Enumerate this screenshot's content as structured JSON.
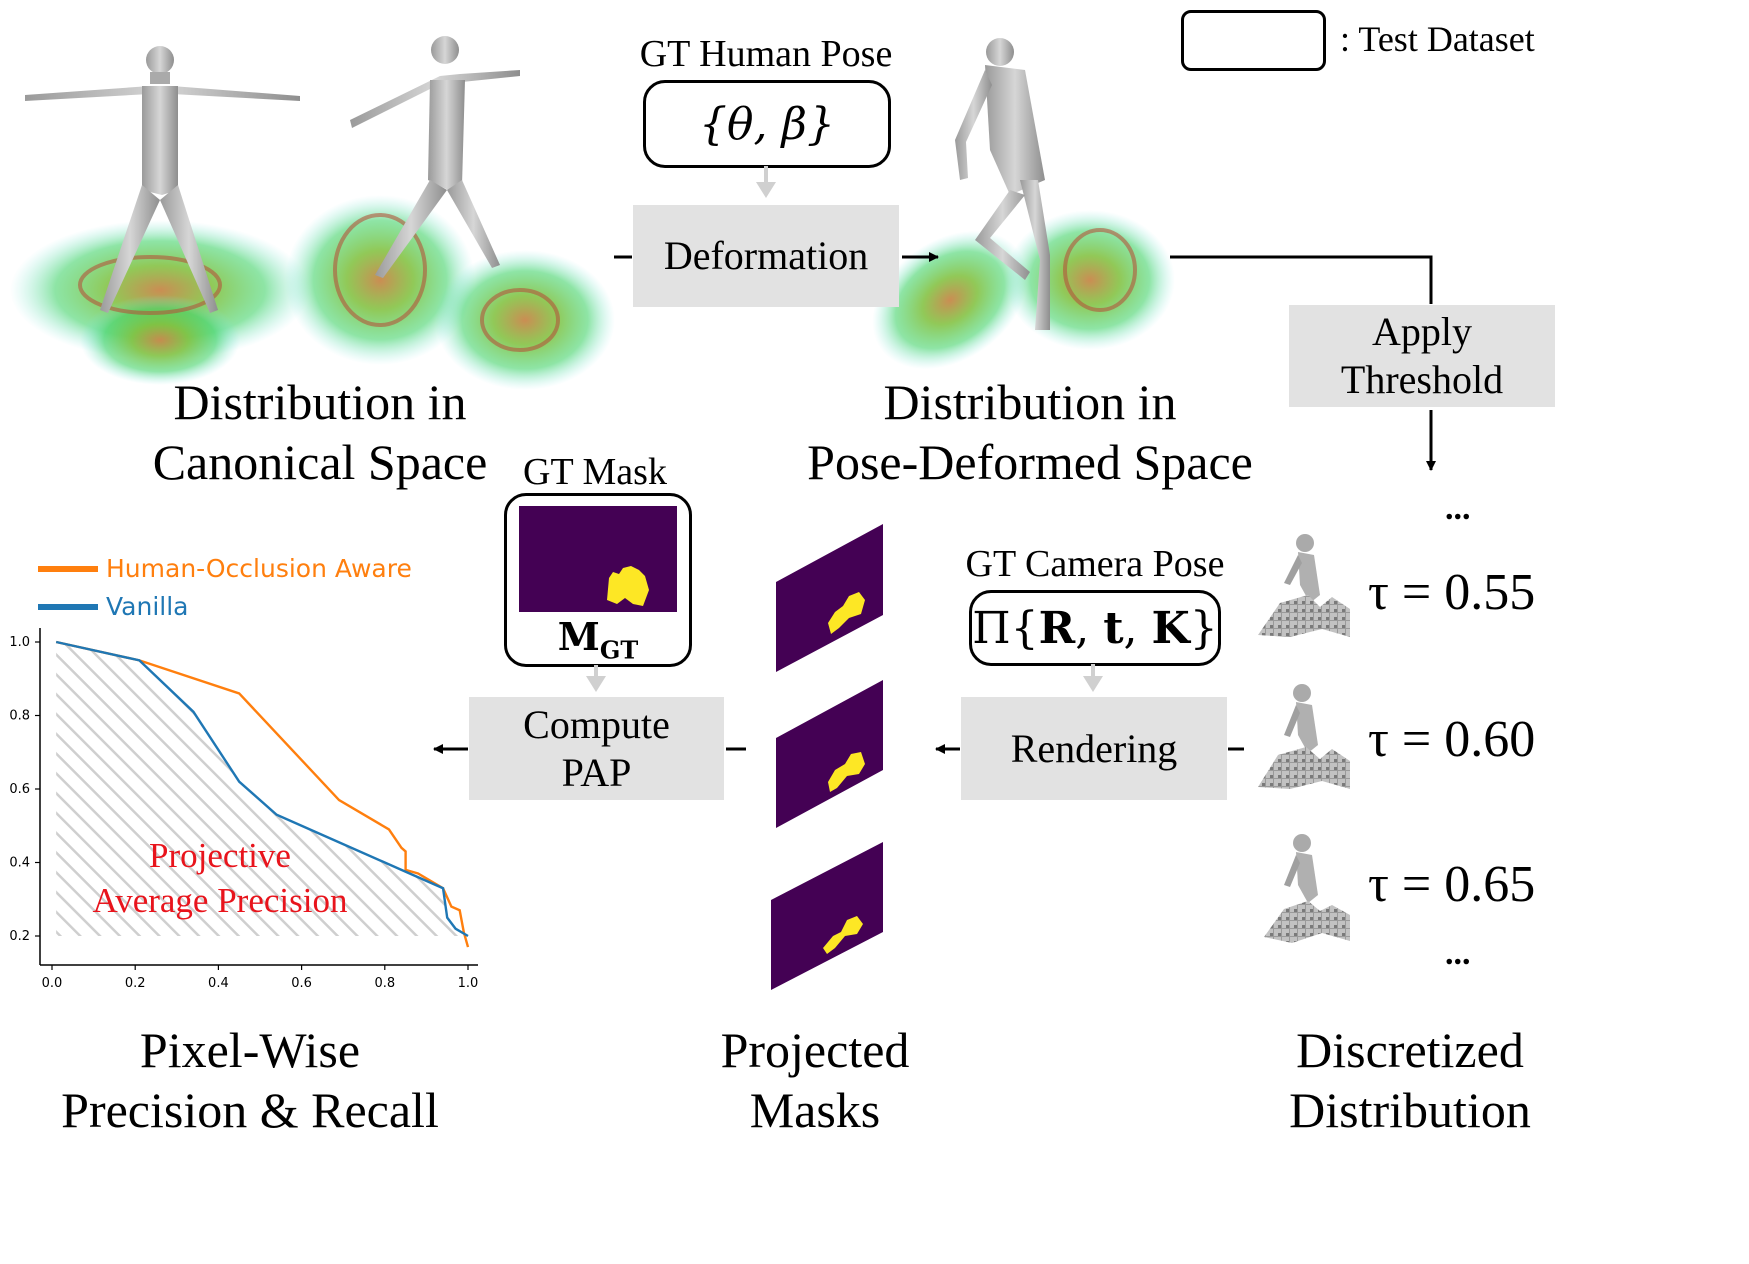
{
  "legend_box": {
    "label": ": Test Dataset"
  },
  "top": {
    "gt_pose_title": "GT Human Pose",
    "gt_pose_math": "{θ, β}",
    "deformation": "Deformation",
    "canonical_caption": [
      "Distribution in",
      "Canonical Space"
    ],
    "deformed_caption": [
      "Distribution in",
      "Pose-Deformed Space"
    ],
    "threshold_label": [
      "Apply",
      "Threshold"
    ]
  },
  "middle": {
    "gt_mask_title": "GT Mask",
    "gt_mask_symbol": "M",
    "gt_mask_subscript": "GT",
    "camera_title": "GT Camera Pose",
    "camera_math": {
      "prefix": "Π{",
      "R": "R",
      "t": "t",
      "K": "K",
      "suffix": "}"
    },
    "rendering": "Rendering",
    "compute_pap": [
      "Compute",
      "PAP"
    ]
  },
  "thresholds": {
    "values": [
      "τ = 0.55",
      "τ = 0.60",
      "τ = 0.65"
    ],
    "ellipsis": "..."
  },
  "bottom_captions": {
    "pr": [
      "Pixel-Wise",
      "Precision & Recall"
    ],
    "masks": [
      "Projected",
      "Masks"
    ],
    "discretized": [
      "Discretized",
      "Distribution"
    ]
  },
  "colors": {
    "mask_bg": "#440154",
    "mask_fg": "#fde725",
    "orange": "#ff7f0e",
    "blue": "#1f77b4",
    "box_gray": "#e2e2e2",
    "pap_red": "#e8141c"
  },
  "chart_data": {
    "type": "line",
    "title": "",
    "xlabel": "",
    "ylabel": "",
    "xlim": [
      0.0,
      1.0
    ],
    "ylim": [
      0.2,
      1.0
    ],
    "x_ticks": [
      "0.0",
      "0.2",
      "0.4",
      "0.6",
      "0.8",
      "1.0"
    ],
    "y_ticks": [
      "0.2",
      "0.4",
      "0.6",
      "0.8",
      "1.0"
    ],
    "legend": "top-left",
    "area_label": [
      "Projective",
      "Average Precision"
    ],
    "series": [
      {
        "name": "Human-Occlusion Aware",
        "color": "#ff7f0e",
        "x": [
          0.01,
          0.21,
          0.45,
          0.69,
          0.81,
          0.84,
          0.85,
          0.85,
          0.88,
          0.94,
          0.96,
          0.98,
          0.99,
          1.0
        ],
        "y": [
          1.0,
          0.95,
          0.86,
          0.57,
          0.49,
          0.44,
          0.43,
          0.38,
          0.37,
          0.33,
          0.28,
          0.27,
          0.21,
          0.17
        ]
      },
      {
        "name": "Vanilla",
        "color": "#1f77b4",
        "x": [
          0.01,
          0.21,
          0.34,
          0.45,
          0.54,
          0.64,
          0.84,
          0.94,
          0.95,
          0.97,
          1.0
        ],
        "y": [
          1.0,
          0.95,
          0.81,
          0.62,
          0.53,
          0.48,
          0.38,
          0.33,
          0.25,
          0.22,
          0.2
        ]
      }
    ]
  }
}
